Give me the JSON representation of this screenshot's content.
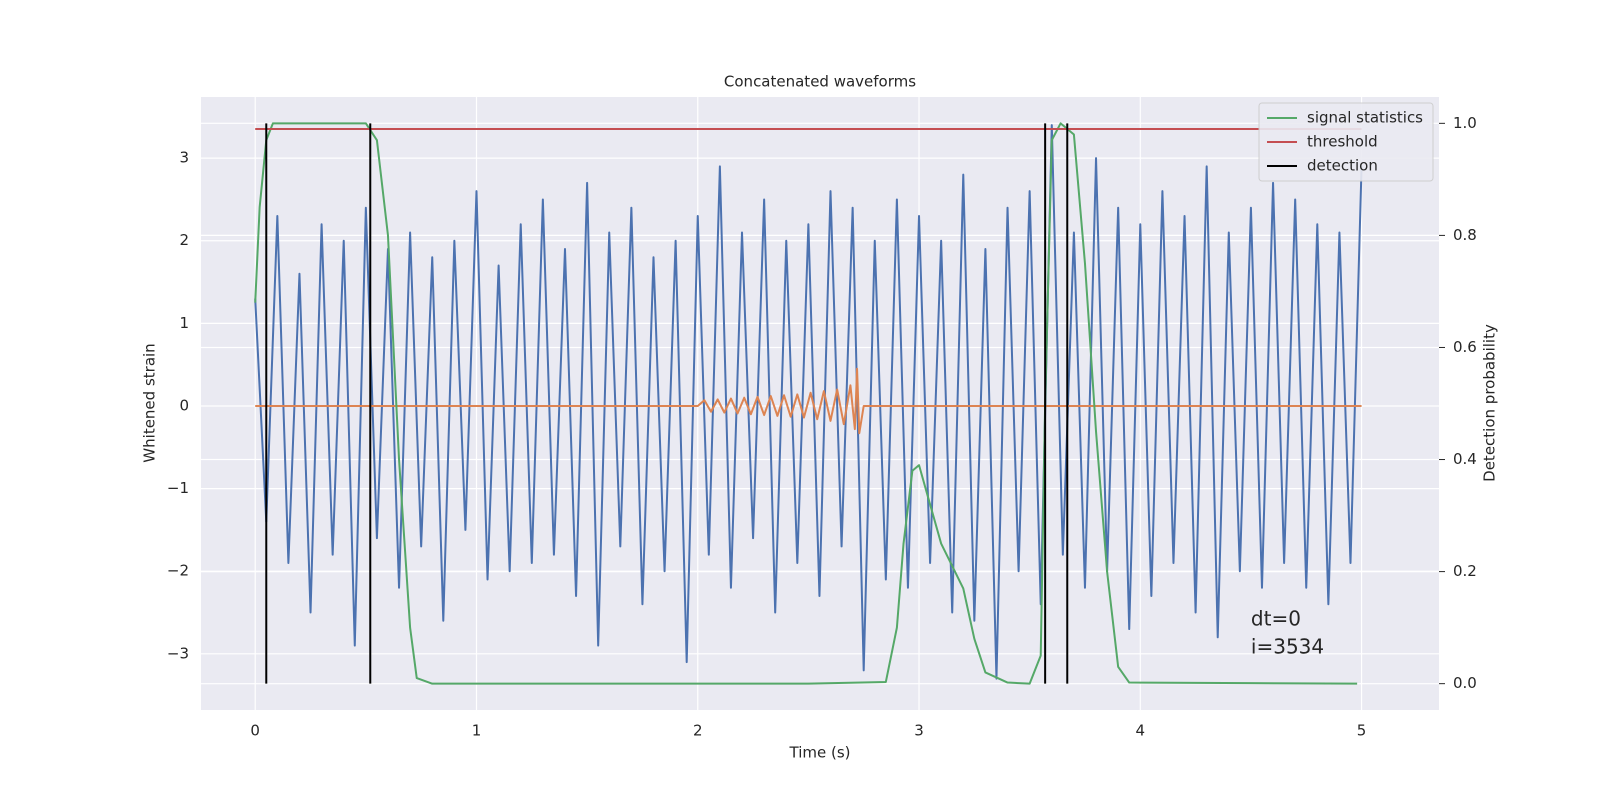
{
  "chart_data": {
    "type": "line",
    "title": "Concatenated waveforms",
    "xlabel": "Time (s)",
    "ylabel": "Whitened strain",
    "y2label": "Detection probability",
    "xlim": [
      -0.245,
      5.35
    ],
    "ylim": [
      -3.68,
      3.74
    ],
    "y2lim": [
      -0.047,
      1.047
    ],
    "xticks": [
      0,
      1,
      2,
      3,
      4,
      5
    ],
    "yticks": [
      {
        "value": -3,
        "label": "−3"
      },
      {
        "value": -2,
        "label": "−2"
      },
      {
        "value": -1,
        "label": "−1"
      },
      0,
      1,
      2,
      3
    ],
    "y2ticks": [
      {
        "value": 0,
        "label": "0.0"
      },
      0.2,
      0.4,
      0.6,
      0.8,
      {
        "value": 1,
        "label": "1.0"
      }
    ],
    "grid": true,
    "legend": "upper right",
    "annotations": [
      "dt=0",
      "i=3534"
    ],
    "series": [
      {
        "color": "#4c72b0",
        "axis": "y",
        "x": [
          0,
          0.05,
          0.1,
          0.15,
          0.2,
          0.25,
          0.3,
          0.35,
          0.4,
          0.45,
          0.5,
          0.55,
          0.6,
          0.65,
          0.7,
          0.75,
          0.8,
          0.85,
          0.9,
          0.95,
          1,
          1.05,
          1.1,
          1.15,
          1.2,
          1.25,
          1.3,
          1.35,
          1.4,
          1.45,
          1.5,
          1.55,
          1.6,
          1.65,
          1.7,
          1.75,
          1.8,
          1.85,
          1.9,
          1.95,
          2,
          2.05,
          2.1,
          2.15,
          2.2,
          2.25,
          2.3,
          2.35,
          2.4,
          2.45,
          2.5,
          2.55,
          2.6,
          2.65,
          2.7,
          2.75,
          2.8,
          2.85,
          2.9,
          2.95,
          3,
          3.05,
          3.1,
          3.15,
          3.2,
          3.25,
          3.3,
          3.35,
          3.4,
          3.45,
          3.5,
          3.55,
          3.6,
          3.65,
          3.7,
          3.75,
          3.8,
          3.85,
          3.9,
          3.95,
          4,
          4.05,
          4.1,
          4.15,
          4.2,
          4.25,
          4.3,
          4.35,
          4.4,
          4.45,
          4.5,
          4.55,
          4.6,
          4.65,
          4.7,
          4.75,
          4.8,
          4.85,
          4.9,
          4.95,
          5
        ],
        "values": [
          1.3,
          -1.4,
          2.3,
          -1.9,
          1.6,
          -2.5,
          2.2,
          -1.8,
          2.0,
          -2.9,
          2.4,
          -1.6,
          1.9,
          -2.2,
          2.1,
          -1.7,
          1.8,
          -2.6,
          2.0,
          -1.5,
          2.6,
          -2.1,
          1.7,
          -2.0,
          2.2,
          -1.9,
          2.5,
          -1.8,
          1.9,
          -2.3,
          2.7,
          -2.9,
          2.1,
          -1.7,
          2.4,
          -2.4,
          1.8,
          -2.0,
          2.0,
          -3.1,
          2.3,
          -1.8,
          2.9,
          -2.2,
          2.1,
          -1.6,
          2.5,
          -2.5,
          2.0,
          -1.9,
          2.2,
          -2.3,
          2.6,
          -1.7,
          2.4,
          -3.2,
          2.0,
          -2.1,
          2.5,
          -2.2,
          2.3,
          -1.9,
          2.0,
          -2.5,
          2.8,
          -2.6,
          1.9,
          -3.3,
          2.4,
          -2.0,
          2.6,
          -2.4,
          3.4,
          -1.8,
          2.1,
          -2.2,
          3.0,
          -2.0,
          2.4,
          -2.7,
          2.2,
          -2.3,
          2.6,
          -1.9,
          2.3,
          -2.5,
          2.9,
          -2.8,
          2.1,
          -2.0,
          2.4,
          -2.2,
          2.7,
          -1.9,
          2.5,
          -2.2,
          2.2,
          -2.4,
          2.1,
          -1.9,
          2.9
        ]
      },
      {
        "color": "#dd8452",
        "axis": "y",
        "x": [
          0,
          2.0,
          2.03,
          2.06,
          2.09,
          2.12,
          2.15,
          2.18,
          2.21,
          2.24,
          2.27,
          2.3,
          2.33,
          2.36,
          2.39,
          2.42,
          2.45,
          2.48,
          2.51,
          2.54,
          2.57,
          2.6,
          2.63,
          2.66,
          2.69,
          2.71,
          2.72,
          2.73,
          2.75,
          5
        ],
        "values": [
          0,
          0,
          0.07,
          -0.07,
          0.08,
          -0.08,
          0.09,
          -0.09,
          0.1,
          -0.1,
          0.11,
          -0.11,
          0.12,
          -0.12,
          0.13,
          -0.13,
          0.14,
          -0.14,
          0.16,
          -0.16,
          0.18,
          -0.18,
          0.2,
          -0.22,
          0.25,
          -0.28,
          0.45,
          -0.33,
          0,
          0
        ]
      },
      {
        "name": "signal statistics",
        "color": "#55a868",
        "axis": "y2",
        "x": [
          0,
          0.02,
          0.05,
          0.08,
          0.3,
          0.5,
          0.55,
          0.6,
          0.65,
          0.7,
          0.73,
          0.8,
          1.5,
          2.5,
          2.85,
          2.9,
          2.93,
          2.97,
          3.0,
          3.05,
          3.1,
          3.2,
          3.25,
          3.3,
          3.4,
          3.5,
          3.55,
          3.57,
          3.6,
          3.64,
          3.7,
          3.75,
          3.8,
          3.85,
          3.9,
          3.95,
          4.5,
          4.98
        ],
        "values": [
          0.68,
          0.85,
          0.97,
          1.0,
          1.0,
          1.0,
          0.97,
          0.8,
          0.4,
          0.1,
          0.01,
          0,
          0,
          0,
          0.003,
          0.1,
          0.25,
          0.38,
          0.39,
          0.32,
          0.25,
          0.17,
          0.08,
          0.02,
          0.002,
          0,
          0.05,
          0.5,
          0.97,
          1.0,
          0.98,
          0.75,
          0.45,
          0.2,
          0.03,
          0.002,
          0.001,
          0
        ]
      },
      {
        "name": "threshold",
        "color": "#c44e52",
        "axis": "y2",
        "x": [
          0,
          5
        ],
        "values": [
          0.99,
          0.99
        ]
      },
      {
        "name": "detection",
        "color": "#000000",
        "axis": "y2",
        "x": [
          0.05,
          0.52,
          3.57,
          3.67
        ],
        "ymin": 0,
        "ymax": 1
      }
    ]
  }
}
